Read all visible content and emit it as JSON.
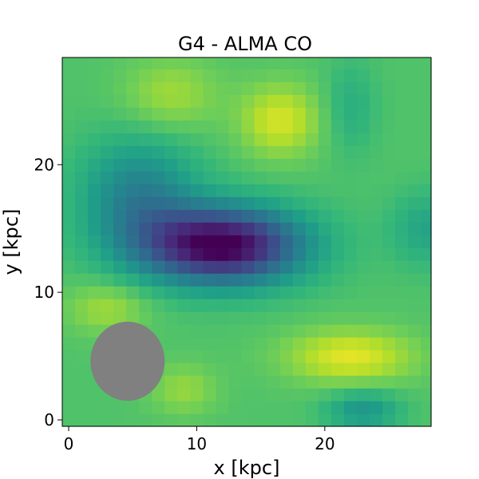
{
  "chart_data": {
    "type": "heatmap",
    "title": "G4 - ALMA CO",
    "xlabel": "x [kpc]",
    "ylabel": "y [kpc]",
    "xlim": [
      -0.5,
      28.3
    ],
    "ylim": [
      -0.5,
      28.4
    ],
    "xticks": [
      0,
      10,
      20
    ],
    "yticks": [
      0,
      10,
      20
    ],
    "grid": false,
    "colormap": "viridis",
    "background_level": 0.72,
    "components": [
      {
        "kind": "depression",
        "x": 12.0,
        "y": 13.7,
        "sx": 4.4,
        "sy": 2.1,
        "amp": 0.74
      },
      {
        "kind": "depression",
        "x": 5.5,
        "y": 17.5,
        "sx": 3.2,
        "sy": 3.2,
        "amp": 0.28
      },
      {
        "kind": "peak",
        "x": 16.5,
        "y": 23.5,
        "sx": 2.2,
        "sy": 2.0,
        "amp": 0.22
      },
      {
        "kind": "peak",
        "x": 22.0,
        "y": 5.0,
        "sx": 3.5,
        "sy": 1.5,
        "amp": 0.24
      },
      {
        "kind": "peak",
        "x": 8.0,
        "y": 25.5,
        "sx": 2.6,
        "sy": 2.0,
        "amp": 0.14
      },
      {
        "kind": "peak",
        "x": 3.0,
        "y": 8.8,
        "sx": 2.2,
        "sy": 1.4,
        "amp": 0.14
      },
      {
        "kind": "peak",
        "x": 9.0,
        "y": 2.4,
        "sx": 1.8,
        "sy": 1.4,
        "amp": 0.12
      },
      {
        "kind": "depression",
        "x": 23.0,
        "y": 0.8,
        "sx": 2.0,
        "sy": 1.1,
        "amp": 0.2
      },
      {
        "kind": "depression",
        "x": 28.0,
        "y": 15.0,
        "sx": 2.0,
        "sy": 2.0,
        "amp": 0.14
      },
      {
        "kind": "depression",
        "x": 22.0,
        "y": 24.5,
        "sx": 1.4,
        "sy": 2.5,
        "amp": 0.1
      }
    ],
    "beam": {
      "center_x": 4.6,
      "center_y": 4.6,
      "major_kpc": 5.8,
      "minor_kpc": 6.2,
      "color": "#808080"
    }
  }
}
